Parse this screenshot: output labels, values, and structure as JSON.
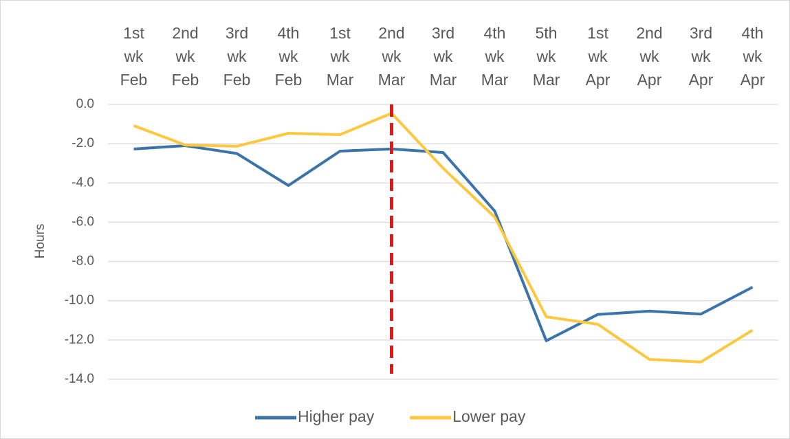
{
  "chart_data": {
    "type": "line",
    "categories": [
      "1st wk Feb",
      "2nd wk Feb",
      "3rd wk Feb",
      "4th wk Feb",
      "1st wk Mar",
      "2nd wk Mar",
      "3rd wk Mar",
      "4th wk Mar",
      "5th wk Mar",
      "1st wk Apr",
      "2nd wk Apr",
      "3rd wk Apr",
      "4th wk Apr"
    ],
    "series": [
      {
        "name": "Higher pay",
        "color": "#3a74a9",
        "values": [
          -2.27,
          -2.1,
          -2.5,
          -4.13,
          -2.38,
          -2.27,
          -2.45,
          -5.43,
          -12.04,
          -10.7,
          -10.53,
          -10.68,
          -9.31
        ]
      },
      {
        "name": "Lower pay",
        "color": "#fdc73f",
        "values": [
          -1.08,
          -2.07,
          -2.13,
          -1.47,
          -1.54,
          -0.45,
          -3.25,
          -5.74,
          -10.82,
          -11.2,
          -12.99,
          -13.12,
          -11.5
        ]
      }
    ],
    "ylabel": "Hours",
    "ylim": [
      -14,
      0
    ],
    "yticks": [
      {
        "value": 0,
        "label": "0.0"
      },
      {
        "value": -2,
        "label": "-2.0"
      },
      {
        "value": -4,
        "label": "-4.0"
      },
      {
        "value": -6,
        "label": "-6.0"
      },
      {
        "value": -8,
        "label": "-8.0"
      },
      {
        "value": -10,
        "label": "-10.0"
      },
      {
        "value": -12,
        "label": "-12.0"
      },
      {
        "value": -14,
        "label": "-14.0"
      }
    ],
    "grid": true,
    "legend": "bottom",
    "marker_line": {
      "category": "2nd wk Mar",
      "color": "#ee1111"
    }
  }
}
